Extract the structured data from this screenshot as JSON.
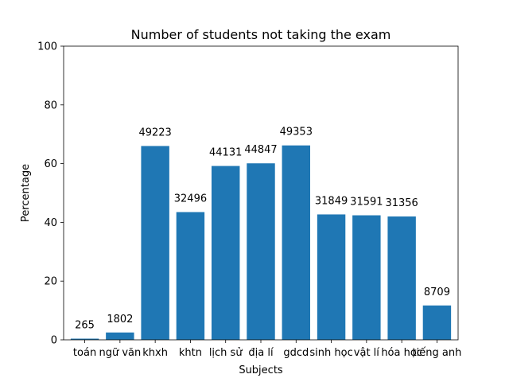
{
  "chart_data": {
    "type": "bar",
    "title": "Number of students not taking the exam",
    "xlabel": "Subjects",
    "ylabel": "Percentage",
    "ylim": [
      0,
      100
    ],
    "yticks": [
      0,
      20,
      40,
      60,
      80,
      100
    ],
    "grid": false,
    "bar_color": "#1f77b4",
    "categories": [
      "toán",
      "ngữ văn",
      "khxh",
      "khtn",
      "lịch sử",
      "địa lí",
      "gdcd",
      "sinh học",
      "vật lí",
      "hóa học",
      "tiếng anh"
    ],
    "values": [
      0.4,
      2.5,
      66.0,
      43.5,
      59.2,
      60.1,
      66.2,
      42.7,
      42.4,
      42.0,
      11.7
    ],
    "data_labels": [
      "265",
      "1802",
      "49223",
      "32496",
      "44131",
      "44847",
      "49353",
      "31849",
      "31591",
      "31356",
      "8709"
    ]
  }
}
